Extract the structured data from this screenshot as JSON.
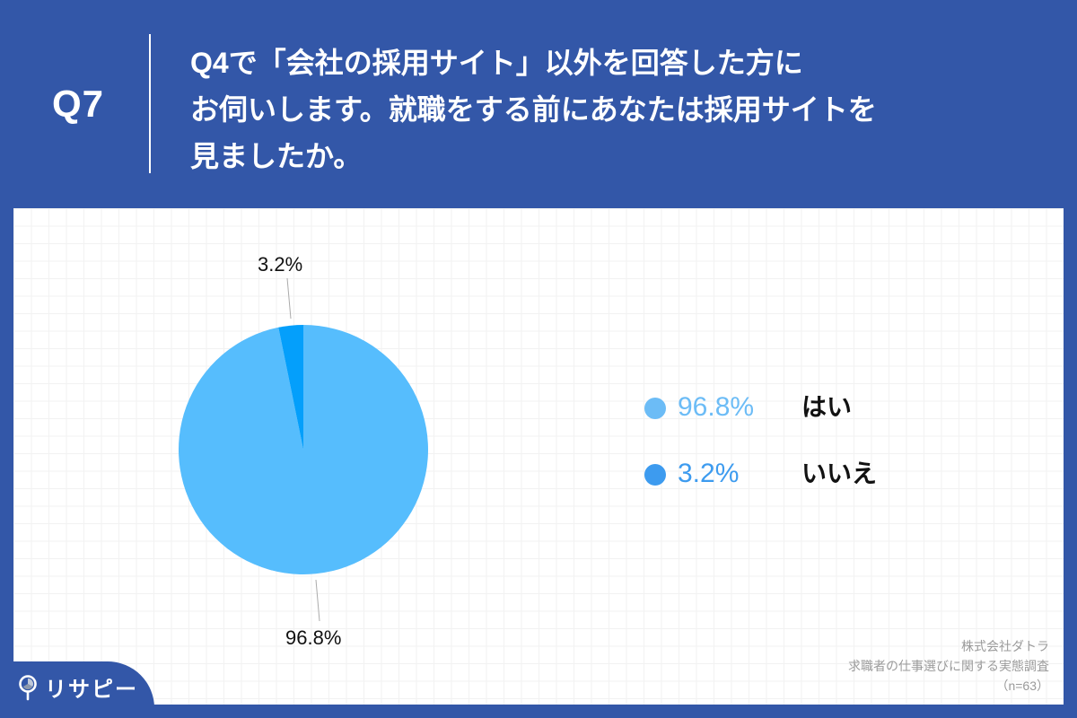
{
  "header": {
    "question_number": "Q7",
    "question_lines": [
      "Q4で「会社の採用サイト」以外を回答した方に",
      "お伺いします。就職をする前にあなたは採用サイトを",
      "見ましたか。"
    ]
  },
  "colors": {
    "background": "#3357a8",
    "slice_yes": "#56bdfd",
    "slice_no": "#049ffb",
    "legend_yes": "#6cbcf6",
    "legend_no": "#3d9bef"
  },
  "chart_data": {
    "type": "pie",
    "title": "Q4で「会社の採用サイト」以外を回答した方にお伺いします。就職をする前にあなたは採用サイトを見ましたか。",
    "categories": [
      "はい",
      "いいえ"
    ],
    "values": [
      96.8,
      3.2
    ],
    "value_labels": [
      "96.8%",
      "3.2%"
    ],
    "unit": "%",
    "start_angle": "12 o'clock, counter-clockwise order for いいえ",
    "legend_position": "right",
    "n": 63
  },
  "legend": [
    {
      "pct": "96.8%",
      "label": "はい",
      "color": "#6cbcf6"
    },
    {
      "pct": "3.2%",
      "label": "いいえ",
      "color": "#3d9bef"
    }
  ],
  "pie_labels": {
    "yes": "96.8%",
    "no": "3.2%"
  },
  "source": {
    "company": "株式会社ダトラ",
    "survey": "求職者の仕事選びに関する実態調査",
    "sample": "（n=63）"
  },
  "brand": {
    "name": "リサピー"
  }
}
